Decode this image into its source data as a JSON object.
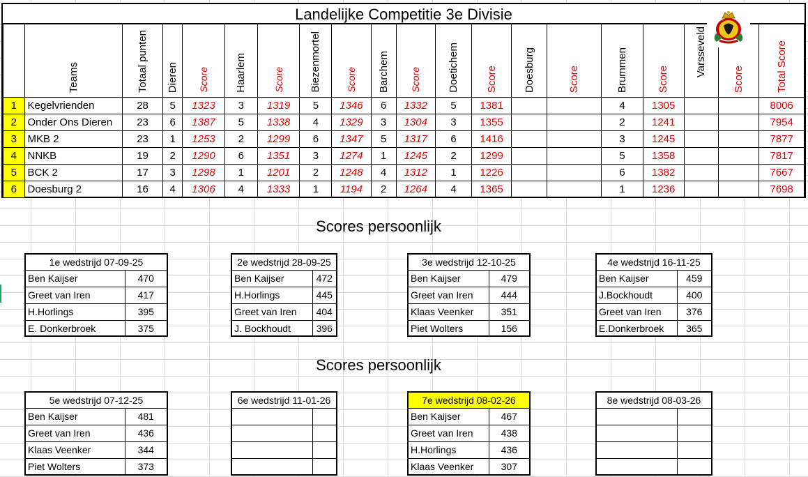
{
  "title": "Landelijke Competitie 3e Divisie",
  "columns": {
    "teams": "Teams",
    "totaal_punten": "Totaal punten",
    "dieren": "Dieren",
    "haarlem": "Haarlem",
    "biezenmortel": "Biezenmortel",
    "barchem": "Barchem",
    "doetichem": "Doetichem",
    "doesburg": "Doesburg",
    "brummen": "Brummen",
    "varsseveld": "Varsseveld",
    "score": "Score",
    "total_score": "Total Score"
  },
  "teams": [
    {
      "rank": "1",
      "name": "Kegelvrienden",
      "punten": "28",
      "dieren": "5",
      "dieren_score": "1323",
      "haarlem": "3",
      "haarlem_score": "1319",
      "biezenmortel": "5",
      "biezenmortel_score": "1346",
      "barchem": "6",
      "barchem_score": "1332",
      "doetichem": "5",
      "doetichem_score": "1381",
      "brummen": "4",
      "brummen_score": "1305",
      "total": "8006"
    },
    {
      "rank": "2",
      "name": "Onder Ons Dieren",
      "punten": "23",
      "dieren": "6",
      "dieren_score": "1387",
      "haarlem": "5",
      "haarlem_score": "1338",
      "biezenmortel": "4",
      "biezenmortel_score": "1329",
      "barchem": "3",
      "barchem_score": "1304",
      "doetichem": "3",
      "doetichem_score": "1355",
      "brummen": "2",
      "brummen_score": "1241",
      "total": "7954"
    },
    {
      "rank": "3",
      "name": "MKB 2",
      "punten": "23",
      "dieren": "1",
      "dieren_score": "1253",
      "haarlem": "2",
      "haarlem_score": "1299",
      "biezenmortel": "6",
      "biezenmortel_score": "1347",
      "barchem": "5",
      "barchem_score": "1317",
      "doetichem": "6",
      "doetichem_score": "1416",
      "brummen": "3",
      "brummen_score": "1245",
      "total": "7877"
    },
    {
      "rank": "4",
      "name": "NNKB",
      "punten": "19",
      "dieren": "2",
      "dieren_score": "1290",
      "haarlem": "6",
      "haarlem_score": "1351",
      "biezenmortel": "3",
      "biezenmortel_score": "1274",
      "barchem": "1",
      "barchem_score": "1245",
      "doetichem": "2",
      "doetichem_score": "1299",
      "brummen": "5",
      "brummen_score": "1358",
      "total": "7817"
    },
    {
      "rank": "5",
      "name": "BCK 2",
      "punten": "17",
      "dieren": "3",
      "dieren_score": "1298",
      "haarlem": "1",
      "haarlem_score": "1201",
      "biezenmortel": "2",
      "biezenmortel_score": "1248",
      "barchem": "4",
      "barchem_score": "1312",
      "doetichem": "1",
      "doetichem_score": "1226",
      "brummen": "6",
      "brummen_score": "1382",
      "total": "7667"
    },
    {
      "rank": "6",
      "name": "Doesburg 2",
      "punten": "16",
      "dieren": "4",
      "dieren_score": "1306",
      "haarlem": "4",
      "haarlem_score": "1333",
      "biezenmortel": "1",
      "biezenmortel_score": "1194",
      "barchem": "2",
      "barchem_score": "1264",
      "doetichem": "4",
      "doetichem_score": "1365",
      "brummen": "1",
      "brummen_score": "1236",
      "total": "7698"
    }
  ],
  "section_title_1": "Scores persoonlijk",
  "section_title_2": "Scores persoonlijk",
  "matches": [
    {
      "title": "1e wedstrijd  07-09-25",
      "rows": [
        [
          "Ben Kaijser",
          "470"
        ],
        [
          "Greet van Iren",
          "417"
        ],
        [
          "H.Horlings",
          "395"
        ],
        [
          "E. Donkerbroek",
          "375"
        ]
      ]
    },
    {
      "title": "2e wedstrijd 28-09-25",
      "rows": [
        [
          "Ben Kaijser",
          "472"
        ],
        [
          "H.Horlings",
          "445"
        ],
        [
          "Greet van Iren",
          "404"
        ],
        [
          "J. Bockhoudt",
          "396"
        ]
      ]
    },
    {
      "title": "3e wedstrijd 12-10-25",
      "rows": [
        [
          "Ben Kaijser",
          "479"
        ],
        [
          "Greet van Iren",
          "444"
        ],
        [
          "Klaas Veenker",
          "351"
        ],
        [
          "Piet Wolters",
          "156"
        ]
      ]
    },
    {
      "title": "4e wedstrijd 16-11-25",
      "rows": [
        [
          "Ben Kaijser",
          "459"
        ],
        [
          "J.Bockhoudt",
          "400"
        ],
        [
          "Greet van Iren",
          "376"
        ],
        [
          "E.Donkerbroek",
          "365"
        ]
      ]
    },
    {
      "title": "5e wedstrijd 07-12-25",
      "rows": [
        [
          "Ben Kaijser",
          "481"
        ],
        [
          "Greet van Iren",
          "436"
        ],
        [
          "Klaas Veenker",
          "344"
        ],
        [
          "Piet Wolters",
          "373"
        ]
      ]
    },
    {
      "title": "6e wedstrijd 11-01-26",
      "rows": [
        [
          "",
          ""
        ],
        [
          "",
          ""
        ],
        [
          "",
          ""
        ],
        [
          "",
          ""
        ]
      ]
    },
    {
      "title": "7e wedstrijd 08-02-26",
      "highlight": true,
      "rows": [
        [
          "Ben Kaijser",
          "467"
        ],
        [
          "Greet van Iren",
          "438"
        ],
        [
          "H.Horlings",
          "436"
        ],
        [
          "Klaas Veenker",
          "307"
        ]
      ]
    },
    {
      "title": "8e wedstrijd 08-03-26",
      "rows": [
        [
          "",
          ""
        ],
        [
          "",
          ""
        ],
        [
          "",
          ""
        ],
        [
          "",
          ""
        ]
      ]
    }
  ],
  "colors": {
    "highlight": "#ffff00",
    "score_red": "#e00000",
    "grid": "#d9d9d9"
  },
  "logo": {
    "icon": "crest-logo-icon"
  }
}
